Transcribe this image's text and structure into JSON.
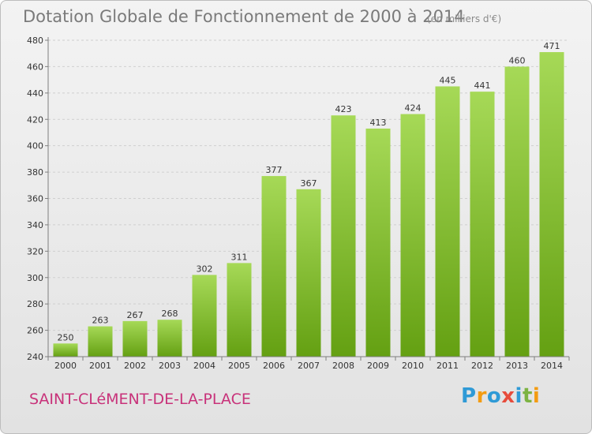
{
  "page": {
    "title": "Dotation Globale de Fonctionnement de 2000 à 2014",
    "subtitle": "(en milliers d'€)",
    "place": "SAINT-CLéMENT-DE-LA-PLACE",
    "logo": {
      "text": "Proxiti",
      "letters": [
        {
          "ch": "P",
          "color": "#2f9ad6"
        },
        {
          "ch": "r",
          "color": "#f39c12"
        },
        {
          "ch": "o",
          "color": "#2f9ad6"
        },
        {
          "ch": "x",
          "color": "#e74c3c"
        },
        {
          "ch": "i",
          "color": "#2f9ad6"
        },
        {
          "ch": "t",
          "color": "#7cb342"
        },
        {
          "ch": "i",
          "color": "#f39c12"
        }
      ]
    }
  },
  "colors": {
    "bar_top": "#a6d957",
    "bar_bottom": "#64a012",
    "grid": "#cfcfcf",
    "axis": "#7f7f7f"
  },
  "chart_data": {
    "type": "bar",
    "title": "Dotation Globale de Fonctionnement de 2000 à 2014",
    "subtitle": "(en milliers d'€)",
    "xlabel": "",
    "ylabel": "",
    "categories": [
      "2000",
      "2001",
      "2002",
      "2003",
      "2004",
      "2005",
      "2006",
      "2007",
      "2008",
      "2009",
      "2010",
      "2011",
      "2012",
      "2013",
      "2014"
    ],
    "values": [
      250,
      263,
      267,
      268,
      302,
      311,
      377,
      367,
      423,
      413,
      424,
      445,
      441,
      460,
      471
    ],
    "ylim": [
      240,
      480
    ],
    "yticks": [
      240,
      260,
      280,
      300,
      320,
      340,
      360,
      380,
      400,
      420,
      440,
      460,
      480
    ],
    "grid": "horizontal, dashed",
    "legend": "none"
  }
}
